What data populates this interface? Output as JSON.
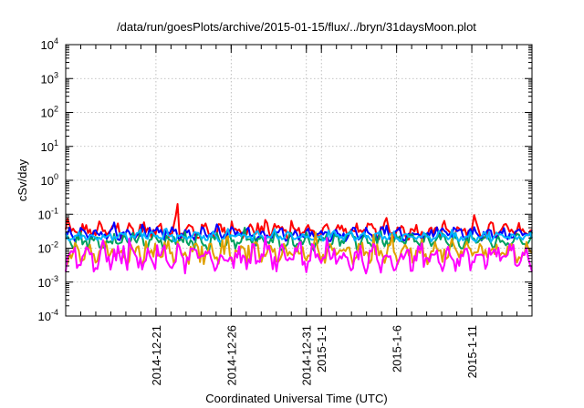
{
  "chart_data": {
    "type": "line",
    "title": "/data/run/goesPlots/archive/2015-01-15/flux/../bryn/31daysMoon.plot",
    "xlabel": "Coordinated Universal Time (UTC)",
    "ylabel": "cSv/day",
    "yscale": "log",
    "ylim": [
      0.0001,
      10000
    ],
    "yticks": [
      {
        "value": 0.0001,
        "base": "10",
        "exp": "-4"
      },
      {
        "value": 0.001,
        "base": "10",
        "exp": "-3"
      },
      {
        "value": 0.01,
        "base": "10",
        "exp": "-2"
      },
      {
        "value": 0.1,
        "base": "10",
        "exp": "-1"
      },
      {
        "value": 1,
        "base": "10",
        "exp": "0"
      },
      {
        "value": 10,
        "base": "10",
        "exp": "1"
      },
      {
        "value": 100,
        "base": "10",
        "exp": "2"
      },
      {
        "value": 1000,
        "base": "10",
        "exp": "3"
      },
      {
        "value": 10000,
        "base": "10",
        "exp": "4"
      }
    ],
    "xlim": [
      "2014-12-15",
      "2015-01-15"
    ],
    "xticks": [
      "2014-12-21",
      "2014-12-26",
      "2014-12-31",
      "2015-1-1",
      "2015-1-6",
      "2015-1-11"
    ],
    "grid": true,
    "legend": "none",
    "series": [
      {
        "color": "#ff0000",
        "base": 0.032,
        "amp": 0.45,
        "spike": {
          "x": 7.4,
          "y": 0.2
        }
      },
      {
        "color": "#0000ff",
        "base": 0.026,
        "amp": 0.35
      },
      {
        "color": "#00a060",
        "base": 0.016,
        "amp": 0.45
      },
      {
        "color": "#00b4ff",
        "base": 0.022,
        "amp": 0.25
      },
      {
        "color": "#e0a000",
        "base": 0.007,
        "amp": 0.55
      },
      {
        "color": "#ff00ff",
        "base": 0.005,
        "amp": 0.7
      }
    ]
  }
}
